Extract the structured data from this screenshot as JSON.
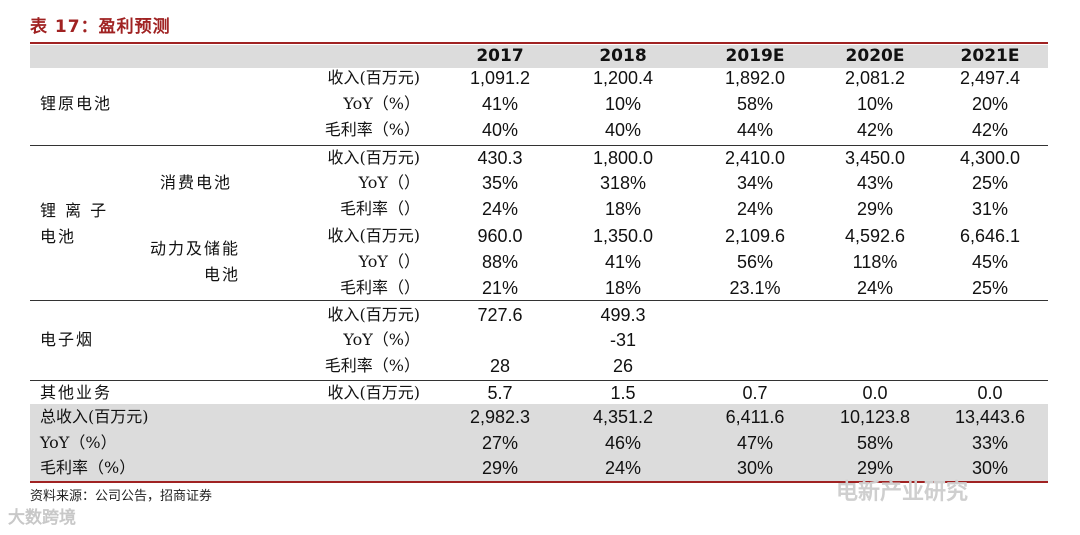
{
  "title": "表 17：盈利预测",
  "columns": [
    "2017",
    "2018",
    "2019E",
    "2020E",
    "2021E"
  ],
  "groups": {
    "li_primary": "锂原电池",
    "li_ion": "锂 离 子\n电池",
    "consumer": "消费电池",
    "power": "动力及储能\n电池",
    "ecig": "电子烟",
    "other": "其他业务"
  },
  "rows": [
    {
      "metric": "收入(百万元)",
      "values": [
        "1,091.2",
        "1,200.4",
        "1,892.0",
        "2,081.2",
        "2,497.4"
      ]
    },
    {
      "metric": "YoY（%）",
      "values": [
        "41%",
        "10%",
        "58%",
        "10%",
        "20%"
      ]
    },
    {
      "metric": "毛利率（%）",
      "values": [
        "40%",
        "40%",
        "44%",
        "42%",
        "42%"
      ]
    },
    {
      "metric": "收入(百万元)",
      "values": [
        "430.3",
        "1,800.0",
        "2,410.0",
        "3,450.0",
        "4,300.0"
      ]
    },
    {
      "metric": "YoY（）",
      "values": [
        "35%",
        "318%",
        "34%",
        "43%",
        "25%"
      ]
    },
    {
      "metric": "毛利率（）",
      "values": [
        "24%",
        "18%",
        "24%",
        "29%",
        "31%"
      ]
    },
    {
      "metric": "收入(百万元)",
      "values": [
        "960.0",
        "1,350.0",
        "2,109.6",
        "4,592.6",
        "6,646.1"
      ]
    },
    {
      "metric": "YoY（）",
      "values": [
        "88%",
        "41%",
        "56%",
        "118%",
        "45%"
      ]
    },
    {
      "metric": "毛利率（）",
      "values": [
        "21%",
        "18%",
        "23.1%",
        "24%",
        "25%"
      ]
    },
    {
      "metric": "收入(百万元)",
      "values": [
        "727.6",
        "499.3",
        "",
        "",
        ""
      ]
    },
    {
      "metric": "YoY（%）",
      "values": [
        "",
        "-31",
        "",
        "",
        ""
      ]
    },
    {
      "metric": "毛利率（%）",
      "values": [
        "28",
        "26",
        "",
        "",
        ""
      ]
    },
    {
      "metric": "收入(百万元)",
      "values": [
        "5.7",
        "1.5",
        "0.7",
        "0.0",
        "0.0"
      ]
    },
    {
      "metric": "总收入(百万元)",
      "values": [
        "2,982.3",
        "4,351.2",
        "6,411.6",
        "10,123.8",
        "13,443.6"
      ]
    },
    {
      "metric": "YoY（%）",
      "values": [
        "27%",
        "46%",
        "47%",
        "58%",
        "33%"
      ]
    },
    {
      "metric": "毛利率（%）",
      "values": [
        "29%",
        "24%",
        "30%",
        "29%",
        "30%"
      ]
    }
  ],
  "source": "资料来源：公司公告，招商证券",
  "watermark_left": "大数跨境",
  "watermark_right": "电新产业研究"
}
